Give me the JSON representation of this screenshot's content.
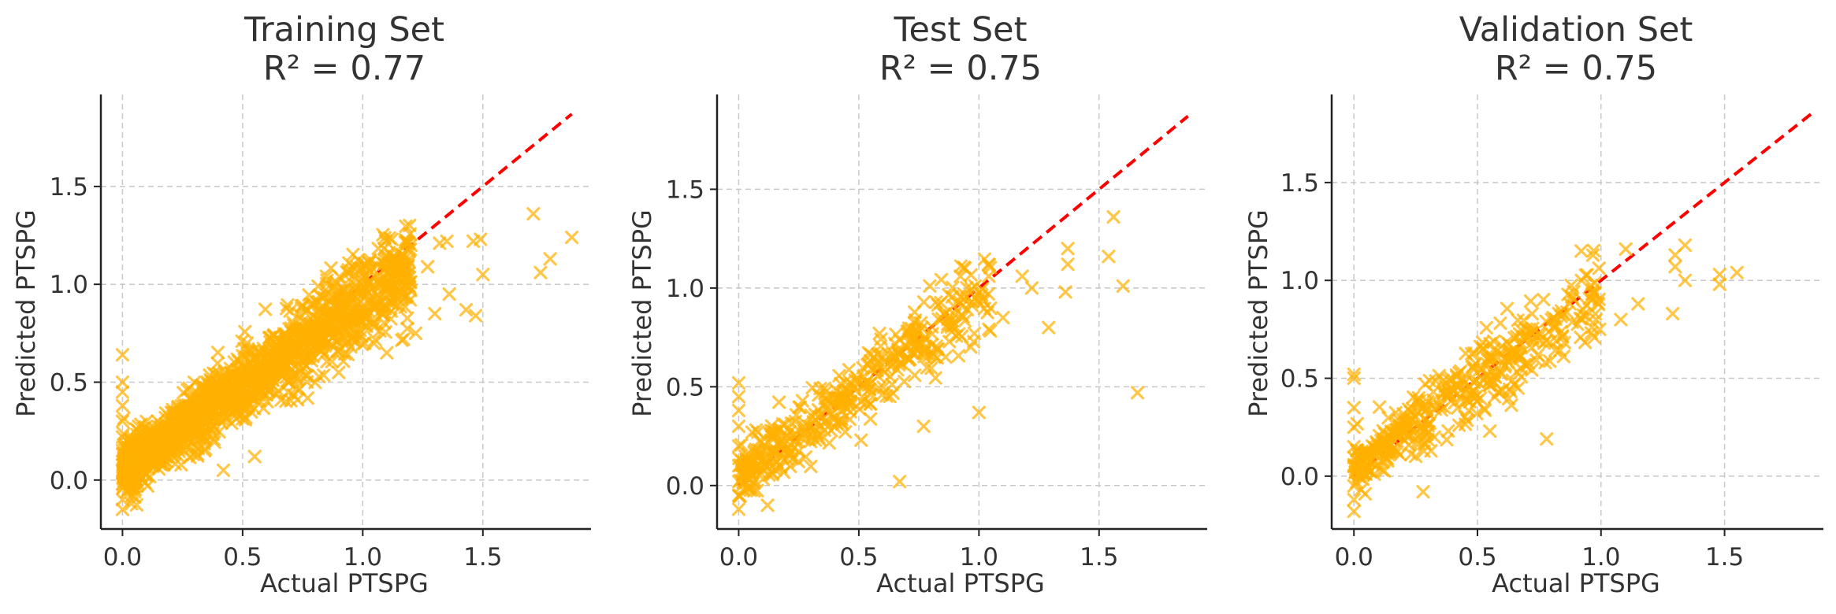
{
  "chart_data": [
    {
      "type": "scatter",
      "title_lines": [
        "Training Set",
        "R² = 0.77"
      ],
      "xlabel": "Actual PTSPG",
      "ylabel": "Predicted PTSPG",
      "xlim": [
        -0.09,
        1.95
      ],
      "ylim": [
        -0.25,
        1.97
      ],
      "xticks": [
        "0.0",
        "0.5",
        "1.0",
        "1.5"
      ],
      "yticks": [
        "0.0",
        "0.5",
        "1.0",
        "1.5"
      ],
      "grid": true,
      "marker": "x",
      "marker_color": "#ffb000",
      "reference_line": {
        "x": [
          0,
          1.87
        ],
        "y": [
          0,
          1.87
        ],
        "color": "#ff0000",
        "style": "dashed"
      },
      "cluster": {
        "count": 1500,
        "max_x": 1.2,
        "seed": 11
      },
      "points": [
        [
          0.0,
          0.64
        ],
        [
          0.0,
          0.5
        ],
        [
          0.0,
          0.45
        ],
        [
          0.0,
          0.38
        ],
        [
          0.0,
          0.3
        ],
        [
          0.0,
          0.22
        ],
        [
          0.0,
          0.15
        ],
        [
          0.0,
          0.05
        ],
        [
          0.0,
          -0.02
        ],
        [
          0.0,
          -0.1
        ],
        [
          0.0,
          -0.15
        ],
        [
          1.71,
          1.36
        ],
        [
          1.87,
          1.24
        ],
        [
          1.78,
          1.13
        ],
        [
          1.74,
          1.06
        ],
        [
          1.49,
          1.23
        ],
        [
          1.46,
          1.22
        ],
        [
          1.5,
          1.05
        ],
        [
          1.47,
          0.84
        ],
        [
          1.43,
          0.87
        ],
        [
          1.36,
          0.95
        ],
        [
          1.3,
          0.85
        ],
        [
          1.27,
          1.09
        ],
        [
          1.32,
          1.21
        ],
        [
          1.35,
          1.22
        ],
        [
          1.2,
          1.2
        ],
        [
          1.22,
          0.75
        ],
        [
          1.1,
          0.65
        ],
        [
          1.0,
          0.85
        ],
        [
          0.95,
          0.68
        ],
        [
          0.9,
          0.55
        ],
        [
          0.58,
          0.45
        ],
        [
          0.42,
          0.05
        ],
        [
          0.55,
          0.12
        ]
      ]
    },
    {
      "type": "scatter",
      "title_lines": [
        "Test Set",
        "R² = 0.75"
      ],
      "xlabel": "Actual PTSPG",
      "ylabel": "Predicted PTSPG",
      "xlim": [
        -0.09,
        1.95
      ],
      "ylim": [
        -0.22,
        1.98
      ],
      "xticks": [
        "0.0",
        "0.5",
        "1.0",
        "1.5"
      ],
      "yticks": [
        "0.0",
        "0.5",
        "1.0",
        "1.5"
      ],
      "grid": true,
      "marker": "x",
      "marker_color": "#ffb000",
      "reference_line": {
        "x": [
          0,
          1.87
        ],
        "y": [
          0,
          1.87
        ],
        "color": "#ff0000",
        "style": "dashed"
      },
      "cluster": {
        "count": 420,
        "max_x": 1.05,
        "seed": 23
      },
      "points": [
        [
          0.0,
          0.52
        ],
        [
          0.0,
          0.45
        ],
        [
          0.0,
          0.38
        ],
        [
          0.0,
          0.3
        ],
        [
          0.0,
          0.2
        ],
        [
          0.0,
          0.1
        ],
        [
          0.0,
          0.02
        ],
        [
          0.0,
          -0.05
        ],
        [
          0.0,
          -0.12
        ],
        [
          1.56,
          1.36
        ],
        [
          1.54,
          1.16
        ],
        [
          1.6,
          1.01
        ],
        [
          1.37,
          1.2
        ],
        [
          1.37,
          1.12
        ],
        [
          1.36,
          0.98
        ],
        [
          1.29,
          0.8
        ],
        [
          1.22,
          1.0
        ],
        [
          1.18,
          1.06
        ],
        [
          1.1,
          0.85
        ],
        [
          1.66,
          0.47
        ],
        [
          1.0,
          0.37
        ],
        [
          0.77,
          0.3
        ],
        [
          0.67,
          0.02
        ],
        [
          0.12,
          -0.1
        ]
      ]
    },
    {
      "type": "scatter",
      "title_lines": [
        "Validation Set",
        "R² = 0.75"
      ],
      "xlabel": "Actual PTSPG",
      "ylabel": "Predicted PTSPG",
      "xlim": [
        -0.09,
        1.9
      ],
      "ylim": [
        -0.27,
        1.95
      ],
      "xticks": [
        "0.0",
        "0.5",
        "1.0",
        "1.5"
      ],
      "yticks": [
        "0.0",
        "0.5",
        "1.0",
        "1.5"
      ],
      "grid": true,
      "marker": "x",
      "marker_color": "#ffb000",
      "reference_line": {
        "x": [
          0,
          1.85
        ],
        "y": [
          0,
          1.85
        ],
        "color": "#ff0000",
        "style": "dashed"
      },
      "cluster": {
        "count": 420,
        "max_x": 1.0,
        "seed": 37
      },
      "points": [
        [
          0.0,
          0.52
        ],
        [
          0.0,
          0.5
        ],
        [
          0.0,
          0.35
        ],
        [
          0.0,
          0.25
        ],
        [
          0.0,
          0.15
        ],
        [
          0.0,
          0.05
        ],
        [
          0.0,
          -0.05
        ],
        [
          0.0,
          -0.12
        ],
        [
          0.0,
          -0.18
        ],
        [
          1.55,
          1.04
        ],
        [
          1.48,
          1.03
        ],
        [
          1.48,
          0.98
        ],
        [
          1.34,
          1.18
        ],
        [
          1.3,
          1.13
        ],
        [
          1.3,
          1.07
        ],
        [
          1.34,
          1.0
        ],
        [
          1.29,
          0.83
        ],
        [
          1.1,
          1.16
        ],
        [
          0.92,
          1.15
        ],
        [
          1.15,
          0.88
        ],
        [
          1.08,
          0.8
        ],
        [
          0.78,
          0.19
        ],
        [
          0.55,
          0.23
        ],
        [
          0.28,
          -0.08
        ]
      ]
    }
  ]
}
